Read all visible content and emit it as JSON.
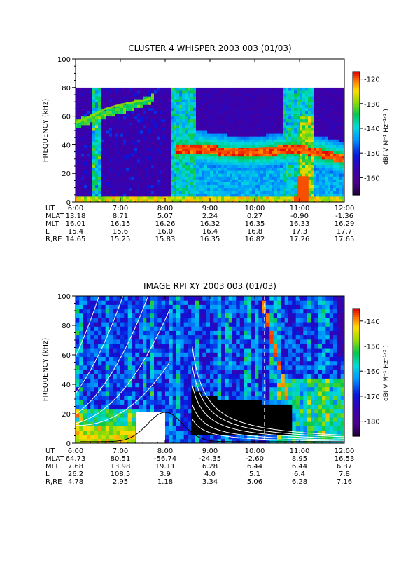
{
  "chart_data": [
    {
      "type": "heatmap",
      "title": "CLUSTER 4 WHISPER 2003 003 (01/03)",
      "ylabel": "FREQUENCY (kHz)",
      "xticks": [
        "6:00",
        "7:00",
        "8:00",
        "9:00",
        "10:00",
        "11:00",
        "12:00"
      ],
      "xlim": [
        "6:00",
        "12:00"
      ],
      "ylim": [
        0,
        100
      ],
      "yticks": [
        0,
        20,
        40,
        60,
        80,
        100
      ],
      "data_fmax": 80,
      "colorbar": {
        "label": "dB( V M⁻¹ Hz⁻¹ᐟ² )",
        "ticks": [
          -120,
          -130,
          -140,
          -150,
          -160
        ],
        "range": [
          -167,
          -117
        ]
      },
      "features": [
        {
          "name": "upper hybrid band",
          "x": [
            "6:00",
            "6:20",
            "6:40",
            "7:00",
            "7:20",
            "7:40"
          ],
          "y": [
            55,
            60,
            65,
            68,
            70,
            72
          ]
        },
        {
          "name": "plasma band",
          "x": [
            "8:15",
            "8:45",
            "9:00",
            "9:30",
            "10:00",
            "10:30",
            "11:00",
            "11:30",
            "12:00"
          ],
          "y": [
            38,
            37,
            35,
            36,
            37,
            38,
            38,
            32,
            30
          ]
        }
      ],
      "ephemeris": [
        {
          "label": "UT",
          "values": [
            "6:00",
            "7:00",
            "8:00",
            "9:00",
            "10:00",
            "11:00",
            "12:00"
          ]
        },
        {
          "label": "MLAT",
          "values": [
            "13.18",
            "8.71",
            "5.07",
            "2.24",
            "0.27",
            "-0.90",
            "-1.36"
          ]
        },
        {
          "label": "MLT",
          "values": [
            "16.01",
            "16.15",
            "16.26",
            "16.32",
            "16.35",
            "16.33",
            "16.29"
          ]
        },
        {
          "label": "L",
          "values": [
            "15.4",
            "15.6",
            "16.0",
            "16.4",
            "16.8",
            "17.3",
            "17.7"
          ]
        },
        {
          "label": "R,RE",
          "values": [
            "14.65",
            "15.25",
            "15.83",
            "16.35",
            "16.82",
            "17.26",
            "17.65"
          ]
        }
      ]
    },
    {
      "type": "heatmap",
      "title": "IMAGE RPI XY 2003 003 (01/03)",
      "ylabel": "FREQUENCY (kHz)",
      "xticks": [
        "6:00",
        "7:00",
        "8:00",
        "9:00",
        "10:00",
        "11:00",
        "12:00"
      ],
      "xlim": [
        "6:00",
        "12:00"
      ],
      "ylim": [
        0,
        100
      ],
      "yticks": [
        0,
        20,
        40,
        60,
        80,
        100
      ],
      "colorbar": {
        "label": "dB( V M⁻¹ Hz⁻¹ᐟ² )",
        "ticks": [
          -140,
          -150,
          -160,
          -170,
          -180
        ],
        "range": [
          -186,
          -135
        ]
      },
      "dashed_marker": "10:13",
      "ephemeris": [
        {
          "label": "UT",
          "values": [
            "6:00",
            "7:00",
            "8:00",
            "9:00",
            "10:00",
            "11:00",
            "12:00"
          ]
        },
        {
          "label": "MLAT",
          "values": [
            "64.73",
            "80.51",
            "-56.74",
            "-24.35",
            "-2.60",
            "8.95",
            "16.53"
          ]
        },
        {
          "label": "MLT",
          "values": [
            "7.68",
            "13.98",
            "19.11",
            "6.28",
            "6.44",
            "6.44",
            "6.37"
          ]
        },
        {
          "label": "L",
          "values": [
            "26.2",
            "108.5",
            "3.9",
            "4.0",
            "5.1",
            "6.4",
            "7.8"
          ]
        },
        {
          "label": "R,RE",
          "values": [
            "4.78",
            "2.95",
            "1.18",
            "3.34",
            "5.06",
            "6.28",
            "7.16"
          ]
        }
      ]
    }
  ]
}
